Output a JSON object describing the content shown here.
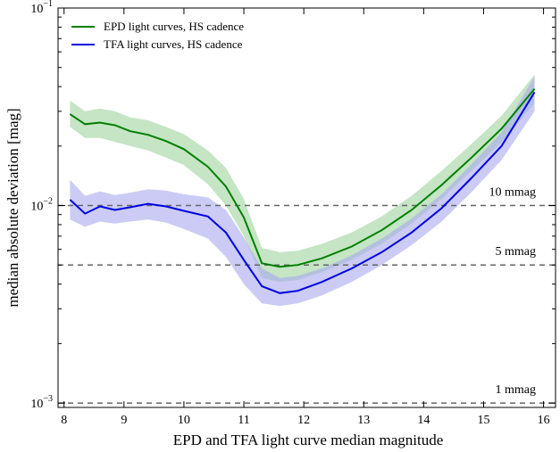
{
  "chart_data": {
    "type": "line",
    "title": "",
    "xlabel": "EPD and TFA light curve median magnitude",
    "ylabel": "median absolute deviation [mag]",
    "xlim": [
      7.9,
      16.2
    ],
    "ylim": [
      0.00095,
      0.1
    ],
    "yscale": "log",
    "x_ticks": [
      8,
      9,
      10,
      11,
      12,
      13,
      14,
      15,
      16
    ],
    "x_tick_labels": [
      "8",
      "9",
      "10",
      "11",
      "12",
      "13",
      "14",
      "15",
      "16"
    ],
    "y_ticks": [
      0.001,
      0.01,
      0.1
    ],
    "y_tick_labels": [
      {
        "base": "10",
        "exp": "−3"
      },
      {
        "base": "10",
        "exp": "−2"
      },
      {
        "base": "10",
        "exp": "−1"
      }
    ],
    "grid": false,
    "legend_position": "top-left",
    "x": [
      8.1,
      8.35,
      8.6,
      8.85,
      9.1,
      9.4,
      9.7,
      10.0,
      10.4,
      10.7,
      11.0,
      11.3,
      11.6,
      11.9,
      12.3,
      12.8,
      13.3,
      13.8,
      14.3,
      14.8,
      15.3,
      15.85
    ],
    "series": [
      {
        "name": "EPD light curves, HS cadence",
        "color": "#008000",
        "band_color": "#9ed39e",
        "values": [
          0.029,
          0.0258,
          0.0263,
          0.0255,
          0.0238,
          0.0228,
          0.0212,
          0.0193,
          0.0157,
          0.0125,
          0.0087,
          0.0051,
          0.0049,
          0.005,
          0.0054,
          0.0062,
          0.0075,
          0.0095,
          0.0127,
          0.0175,
          0.0245,
          0.039
        ],
        "lower": [
          0.025,
          0.022,
          0.022,
          0.021,
          0.02,
          0.019,
          0.0175,
          0.016,
          0.0128,
          0.01,
          0.007,
          0.0043,
          0.0041,
          0.0042,
          0.0046,
          0.0053,
          0.0064,
          0.0081,
          0.0108,
          0.015,
          0.021,
          0.033
        ],
        "upper": [
          0.034,
          0.03,
          0.031,
          0.03,
          0.028,
          0.027,
          0.025,
          0.023,
          0.019,
          0.0155,
          0.0108,
          0.0061,
          0.0058,
          0.0059,
          0.0064,
          0.0073,
          0.0088,
          0.0112,
          0.015,
          0.0205,
          0.0285,
          0.046
        ]
      },
      {
        "name": "TFA light curves, HS cadence",
        "color": "#0000e0",
        "band_color": "#a8a8ee",
        "values": [
          0.0107,
          0.0091,
          0.0099,
          0.0095,
          0.0098,
          0.0102,
          0.0099,
          0.0094,
          0.0088,
          0.0073,
          0.0053,
          0.0039,
          0.0036,
          0.0037,
          0.0041,
          0.0048,
          0.0058,
          0.0073,
          0.0097,
          0.0138,
          0.02,
          0.0375
        ],
        "lower": [
          0.0085,
          0.0078,
          0.0083,
          0.0081,
          0.0083,
          0.0085,
          0.0082,
          0.0076,
          0.0068,
          0.0055,
          0.004,
          0.0032,
          0.0031,
          0.0032,
          0.0035,
          0.0041,
          0.005,
          0.0063,
          0.0083,
          0.0117,
          0.017,
          0.03
        ],
        "upper": [
          0.0135,
          0.0112,
          0.0118,
          0.0113,
          0.0116,
          0.0121,
          0.0119,
          0.0114,
          0.011,
          0.0095,
          0.0069,
          0.0048,
          0.0043,
          0.0044,
          0.0048,
          0.0056,
          0.0068,
          0.0086,
          0.0114,
          0.0162,
          0.0235,
          0.045
        ]
      }
    ],
    "reference_lines": [
      {
        "y": 0.01,
        "label": "10 mmag"
      },
      {
        "y": 0.005,
        "label": "5 mmag"
      },
      {
        "y": 0.001,
        "label": "1 mmag"
      }
    ]
  }
}
